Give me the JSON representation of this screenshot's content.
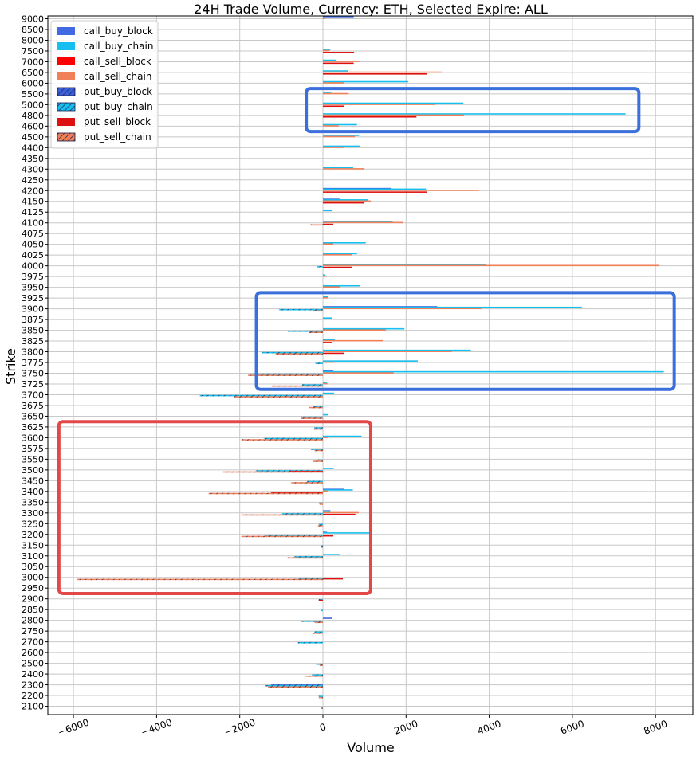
{
  "chart_data": {
    "type": "bar",
    "orientation": "horizontal",
    "title": "24H Trade Volume, Currency: ETH, Selected Expire: ALL",
    "xlabel": "Volume",
    "ylabel": "Strike",
    "xlim": [
      -6500,
      8900
    ],
    "xticks": [
      -6000,
      -4000,
      -2000,
      0,
      2000,
      4000,
      6000,
      8000
    ],
    "xtick_labels": [
      "−6000",
      "−4000",
      "−2000",
      "0",
      "2000",
      "4000",
      "6000",
      "8000"
    ],
    "grid": true,
    "legend_position": "top-left",
    "categories": [
      "9000",
      "8500",
      "8000",
      "7500",
      "7000",
      "6500",
      "6000",
      "5500",
      "5000",
      "4800",
      "4600",
      "4500",
      "4400",
      "4350",
      "4300",
      "4250",
      "4200",
      "4150",
      "4125",
      "4100",
      "4075",
      "4050",
      "4025",
      "4000",
      "3975",
      "3950",
      "3925",
      "3900",
      "3875",
      "3850",
      "3825",
      "3800",
      "3775",
      "3750",
      "3725",
      "3700",
      "3675",
      "3650",
      "3625",
      "3600",
      "3575",
      "3550",
      "3500",
      "3450",
      "3400",
      "3350",
      "3300",
      "3250",
      "3200",
      "3150",
      "3100",
      "3050",
      "3000",
      "2950",
      "2900",
      "2850",
      "2800",
      "2750",
      "2700",
      "2600",
      "2500",
      "2400",
      "2300",
      "2200",
      "2100"
    ],
    "series": [
      {
        "name": "call_buy_block",
        "color": "#4169e1",
        "hatch": false,
        "offset": -2.625,
        "values": [
          740,
          0,
          0,
          0,
          0,
          0,
          0,
          0,
          0,
          0,
          0,
          0,
          0,
          0,
          0,
          0,
          1650,
          400,
          0,
          0,
          0,
          0,
          0,
          0,
          0,
          0,
          0,
          2750,
          0,
          0,
          0,
          0,
          0,
          250,
          0,
          0,
          0,
          0,
          0,
          0,
          0,
          0,
          0,
          0,
          500,
          0,
          180,
          0,
          100,
          0,
          0,
          0,
          0,
          0,
          0,
          0,
          220,
          0,
          0,
          0,
          0,
          0,
          0,
          0,
          0
        ]
      },
      {
        "name": "call_buy_chain",
        "color": "#16bfef",
        "hatch": false,
        "offset": -1.875,
        "values": [
          0,
          0,
          0,
          180,
          330,
          600,
          2050,
          200,
          3380,
          7280,
          820,
          870,
          880,
          0,
          730,
          0,
          2480,
          1080,
          220,
          1680,
          0,
          1030,
          820,
          3930,
          60,
          900,
          130,
          6230,
          220,
          1960,
          290,
          3560,
          2280,
          8200,
          100,
          270,
          0,
          130,
          0,
          930,
          0,
          0,
          260,
          0,
          720,
          0,
          180,
          0,
          1120,
          0,
          410,
          0,
          0,
          0,
          0,
          0,
          0,
          0,
          0,
          0,
          0,
          0,
          0,
          0,
          0
        ]
      },
      {
        "name": "call_sell_block",
        "color": "#ff0000",
        "hatch": false,
        "offset": -1.125,
        "values": [
          0,
          0,
          0,
          0,
          0,
          0,
          0,
          0,
          0,
          0,
          0,
          0,
          0,
          0,
          0,
          0,
          0,
          0,
          0,
          0,
          0,
          0,
          0,
          0,
          0,
          0,
          0,
          0,
          0,
          0,
          0,
          0,
          0,
          0,
          0,
          0,
          0,
          0,
          0,
          0,
          0,
          0,
          0,
          0,
          0,
          0,
          0,
          0,
          0,
          0,
          0,
          0,
          0,
          0,
          0,
          0,
          0,
          0,
          0,
          0,
          0,
          0,
          0,
          0,
          0
        ]
      },
      {
        "name": "call_sell_chain",
        "color": "#f08058",
        "hatch": false,
        "offset": -0.375,
        "values": [
          60,
          0,
          0,
          160,
          880,
          2870,
          500,
          620,
          2700,
          3390,
          380,
          770,
          520,
          0,
          1000,
          0,
          3760,
          1150,
          0,
          1930,
          0,
          250,
          700,
          8080,
          100,
          420,
          130,
          3810,
          0,
          1510,
          1440,
          3100,
          280,
          1700,
          110,
          0,
          0,
          0,
          0,
          120,
          0,
          0,
          0,
          0,
          110,
          0,
          860,
          0,
          0,
          0,
          0,
          0,
          0,
          0,
          0,
          0,
          0,
          0,
          0,
          0,
          0,
          0,
          0,
          0,
          0
        ]
      },
      {
        "name": "put_buy_block",
        "color": "#3a5fd9",
        "hatch": true,
        "offset": 0.375,
        "values": [
          0,
          0,
          0,
          0,
          0,
          0,
          0,
          0,
          0,
          0,
          0,
          0,
          0,
          0,
          0,
          0,
          0,
          0,
          0,
          0,
          0,
          0,
          0,
          0,
          0,
          0,
          0,
          0,
          0,
          0,
          0,
          0,
          0,
          0,
          0,
          0,
          0,
          0,
          0,
          0,
          0,
          0,
          0,
          0,
          0,
          0,
          0,
          0,
          0,
          0,
          0,
          0,
          0,
          0,
          0,
          0,
          0,
          0,
          0,
          0,
          0,
          0,
          -1250,
          0,
          0
        ]
      },
      {
        "name": "put_buy_chain",
        "color": "#16bfef",
        "hatch": true,
        "offset": 1.125,
        "values": [
          0,
          0,
          0,
          0,
          0,
          0,
          0,
          0,
          0,
          0,
          0,
          0,
          0,
          0,
          0,
          0,
          0,
          0,
          0,
          0,
          0,
          0,
          0,
          -150,
          0,
          0,
          0,
          -1050,
          0,
          -840,
          0,
          -1460,
          -180,
          -1680,
          -500,
          -2960,
          -230,
          -530,
          -210,
          -1410,
          -280,
          -120,
          -1600,
          -380,
          -680,
          -100,
          -980,
          -100,
          -1380,
          -50,
          -680,
          0,
          -600,
          0,
          -100,
          -50,
          -540,
          -200,
          -600,
          0,
          -160,
          -260,
          -1390,
          -100,
          -40
        ]
      },
      {
        "name": "put_sell_block",
        "color": "#dd1010",
        "hatch": false,
        "offset": 1.875,
        "values": [
          0,
          0,
          0,
          750,
          740,
          2500,
          0,
          0,
          500,
          2250,
          0,
          0,
          0,
          0,
          0,
          0,
          2500,
          1000,
          0,
          250,
          0,
          0,
          0,
          700,
          0,
          0,
          0,
          0,
          0,
          0,
          230,
          500,
          0,
          0,
          0,
          0,
          0,
          0,
          0,
          0,
          0,
          0,
          -800,
          0,
          -1250,
          0,
          780,
          0,
          250,
          0,
          0,
          0,
          480,
          0,
          -100,
          0,
          0,
          0,
          0,
          0,
          0,
          0,
          0,
          0,
          0
        ]
      },
      {
        "name": "put_sell_chain",
        "color": "#f08058",
        "hatch": true,
        "offset": 2.625,
        "values": [
          0,
          0,
          0,
          0,
          0,
          0,
          0,
          0,
          0,
          0,
          0,
          0,
          0,
          0,
          0,
          0,
          0,
          0,
          0,
          -300,
          0,
          0,
          0,
          0,
          0,
          0,
          0,
          -230,
          0,
          -340,
          0,
          -1140,
          0,
          -1800,
          -1230,
          -2130,
          -330,
          -530,
          -210,
          -1960,
          -200,
          -230,
          -2400,
          -760,
          -2750,
          -80,
          -1960,
          -120,
          -1960,
          -40,
          -850,
          0,
          -5920,
          0,
          0,
          0,
          -200,
          -230,
          0,
          0,
          -80,
          -420,
          -1320,
          -100,
          -40
        ]
      }
    ],
    "annotations": [
      {
        "type": "rectangle",
        "color": "#3a6fdc",
        "x_range": [
          -400,
          7600
        ],
        "y_range": [
          "5500",
          "4600"
        ]
      },
      {
        "type": "rectangle",
        "color": "#3a6fdc",
        "x_range": [
          -1600,
          8450
        ],
        "y_range": [
          "3925",
          "3725"
        ]
      },
      {
        "type": "rectangle",
        "color": "#e34848",
        "x_range": [
          -6350,
          1150
        ],
        "y_range": [
          "3625",
          "2950"
        ]
      }
    ]
  }
}
